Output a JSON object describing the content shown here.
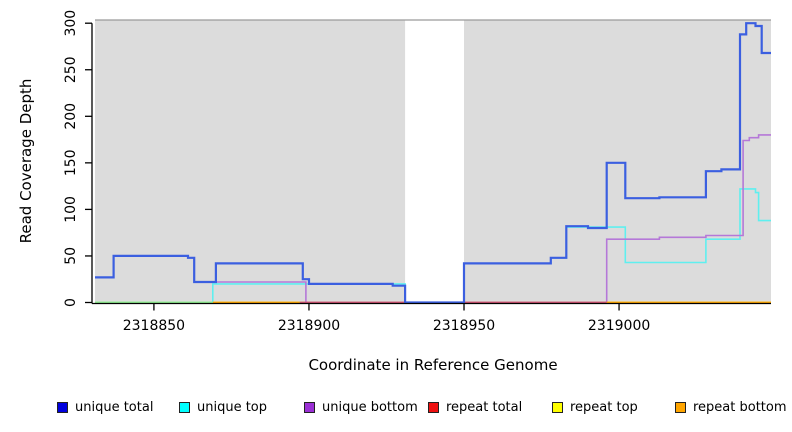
{
  "chart_data": {
    "type": "line",
    "title": "",
    "xlabel": "Coordinate in Reference Genome",
    "ylabel": "Read Coverage Depth",
    "xlim": [
      2318831,
      2319049
    ],
    "ylim": [
      0,
      300
    ],
    "x_ticks": [
      2318850,
      2318900,
      2318950,
      2319000
    ],
    "y_ticks": [
      0,
      50,
      100,
      150,
      200,
      250,
      300
    ],
    "grid": "off",
    "legend_position": "bottom",
    "panel": {
      "fill": "#dcdcdc",
      "top_edge_color": "#9a9a9a",
      "white_gap_region": [
        2318931,
        2318950
      ]
    },
    "series": [
      {
        "name": "unique total",
        "line_color": "#3b5fe0",
        "points": [
          [
            2318831,
            27
          ],
          [
            2318837,
            50
          ],
          [
            2318861,
            48
          ],
          [
            2318863,
            22
          ],
          [
            2318870,
            42
          ],
          [
            2318898,
            25
          ],
          [
            2318900,
            20
          ],
          [
            2318927,
            18
          ],
          [
            2318931,
            0
          ],
          [
            2318950,
            42
          ],
          [
            2318978,
            48
          ],
          [
            2318983,
            82
          ],
          [
            2318990,
            80
          ],
          [
            2318996,
            150
          ],
          [
            2319002,
            112
          ],
          [
            2319013,
            113
          ],
          [
            2319028,
            141
          ],
          [
            2319033,
            143
          ],
          [
            2319039,
            288
          ],
          [
            2319041,
            300
          ],
          [
            2319044,
            297
          ],
          [
            2319046,
            268
          ]
        ]
      },
      {
        "name": "unique top",
        "line_color": "#5fefef",
        "points": [
          [
            2318831,
            0
          ],
          [
            2318869,
            20
          ],
          [
            2318931,
            0
          ],
          [
            2318950,
            42
          ],
          [
            2318978,
            48
          ],
          [
            2318983,
            81
          ],
          [
            2319002,
            43
          ],
          [
            2319028,
            68
          ],
          [
            2319039,
            122
          ],
          [
            2319044,
            118
          ],
          [
            2319045,
            88
          ]
        ]
      },
      {
        "name": "unique bottom",
        "line_color": "#b578d8",
        "points": [
          [
            2318831,
            27
          ],
          [
            2318837,
            50
          ],
          [
            2318861,
            48
          ],
          [
            2318863,
            22
          ],
          [
            2318899,
            0
          ],
          [
            2318996,
            68
          ],
          [
            2319013,
            70
          ],
          [
            2319028,
            72
          ],
          [
            2319040,
            174
          ],
          [
            2319042,
            177
          ],
          [
            2319045,
            180
          ]
        ]
      },
      {
        "name": "repeat total",
        "line_color": "#cf5272",
        "points": [
          [
            2318831,
            0
          ]
        ]
      },
      {
        "name": "repeat top",
        "line_color": "#ffff00",
        "points": [
          [
            2318831,
            0
          ]
        ]
      },
      {
        "name": "repeat bottom",
        "line_color": "#ffa500",
        "points": [
          [
            2318831,
            0
          ]
        ]
      }
    ],
    "baseline_segments": [
      {
        "color": "#90ee90",
        "from": 2318831,
        "to": 2318869
      },
      {
        "color": "#ffa500",
        "from": 2318869,
        "to": 2318897
      },
      {
        "color": "#cf5272",
        "from": 2318897,
        "to": 2318996
      },
      {
        "color": "#ffa500",
        "from": 2318996,
        "to": 2319049
      }
    ]
  },
  "legend": {
    "items": [
      {
        "label": "unique total",
        "color": "#0000dd"
      },
      {
        "label": "unique top",
        "color": "#00ffff"
      },
      {
        "label": "unique bottom",
        "color": "#9b30d5"
      },
      {
        "label": "repeat total",
        "color": "#ee1111"
      },
      {
        "label": "repeat top",
        "color": "#ffff00"
      },
      {
        "label": "repeat bottom",
        "color": "#ffa500"
      }
    ]
  }
}
